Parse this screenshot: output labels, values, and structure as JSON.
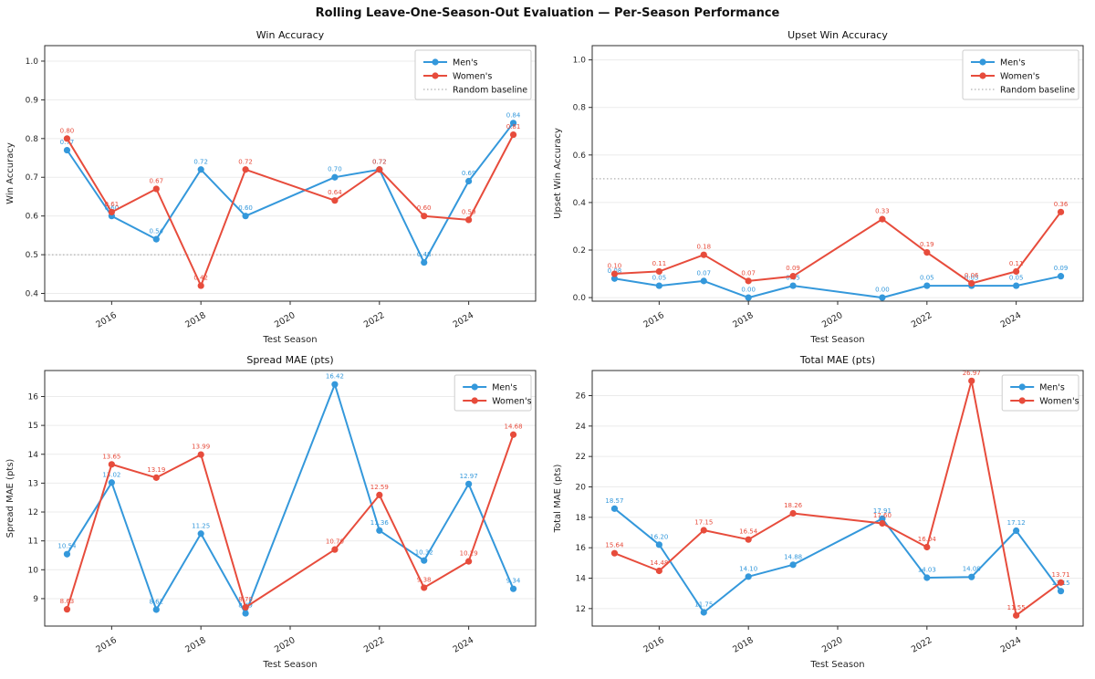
{
  "figure": {
    "title": "Rolling Leave-One-Season-Out Evaluation — Per-Season Performance"
  },
  "colors": {
    "mens": "#3498db",
    "womens": "#e74c3c",
    "baseline": "#b0b0b0",
    "grid": "#ebebeb",
    "spine": "#2e2e2e",
    "text": "#262626"
  },
  "chart_data": [
    {
      "id": "win-accuracy",
      "type": "line",
      "title": "Win Accuracy",
      "xlabel": "Test Season",
      "ylabel": "Win Accuracy",
      "x": [
        2015,
        2016,
        2017,
        2018,
        2019,
        2021,
        2022,
        2023,
        2024,
        2025
      ],
      "series": [
        {
          "name": "Men's",
          "color_key": "mens",
          "values": [
            0.77,
            0.6,
            0.54,
            0.72,
            0.6,
            0.7,
            0.72,
            0.48,
            0.69,
            0.84
          ]
        },
        {
          "name": "Women's",
          "color_key": "womens",
          "values": [
            0.8,
            0.61,
            0.67,
            0.42,
            0.72,
            0.64,
            0.72,
            0.6,
            0.59,
            0.81
          ]
        }
      ],
      "baseline": {
        "label": "Random baseline",
        "value": 0.5
      },
      "legend": [
        "Men's",
        "Women's",
        "Random baseline"
      ],
      "legend_position": "top-right",
      "grid": true,
      "xlim": [
        2014.5,
        2025.5
      ],
      "ylim": [
        0.38,
        1.04
      ],
      "xticks": [
        2016,
        2018,
        2020,
        2022,
        2024
      ],
      "yticks": [
        0.4,
        0.5,
        0.6,
        0.7,
        0.8,
        0.9,
        1.0
      ]
    },
    {
      "id": "upset-win-accuracy",
      "type": "line",
      "title": "Upset Win Accuracy",
      "xlabel": "Test Season",
      "ylabel": "Upset Win Accuracy",
      "x": [
        2015,
        2016,
        2017,
        2018,
        2019,
        2021,
        2022,
        2023,
        2024,
        2025
      ],
      "series": [
        {
          "name": "Men's",
          "color_key": "mens",
          "values": [
            0.08,
            0.05,
            0.07,
            0.0,
            0.05,
            0.0,
            0.05,
            0.05,
            0.05,
            0.09
          ]
        },
        {
          "name": "Women's",
          "color_key": "womens",
          "values": [
            0.1,
            0.11,
            0.18,
            0.07,
            0.09,
            0.33,
            0.19,
            0.06,
            0.11,
            0.36
          ]
        }
      ],
      "baseline": {
        "label": "Random baseline",
        "value": 0.5
      },
      "legend": [
        "Men's",
        "Women's",
        "Random baseline"
      ],
      "legend_position": "top-right",
      "grid": true,
      "xlim": [
        2014.5,
        2025.5
      ],
      "ylim": [
        -0.015,
        1.06
      ],
      "xticks": [
        2016,
        2018,
        2020,
        2022,
        2024
      ],
      "yticks": [
        0.0,
        0.2,
        0.4,
        0.6,
        0.8,
        1.0
      ]
    },
    {
      "id": "spread-mae",
      "type": "line",
      "title": "Spread MAE (pts)",
      "xlabel": "Test Season",
      "ylabel": "Spread MAE (pts)",
      "x": [
        2015,
        2016,
        2017,
        2018,
        2019,
        2021,
        2022,
        2023,
        2024,
        2025
      ],
      "series": [
        {
          "name": "Men's",
          "color_key": "mens",
          "values": [
            10.54,
            13.02,
            8.62,
            11.25,
            8.49,
            16.42,
            11.36,
            10.32,
            12.97,
            9.34
          ]
        },
        {
          "name": "Women's",
          "color_key": "womens",
          "values": [
            8.63,
            13.65,
            13.19,
            13.99,
            8.7,
            10.7,
            12.59,
            9.38,
            10.29,
            14.68
          ]
        }
      ],
      "baseline": null,
      "legend": [
        "Men's",
        "Women's"
      ],
      "legend_position": "top-right",
      "grid": true,
      "xlim": [
        2014.5,
        2025.5
      ],
      "ylim": [
        8.05,
        16.9
      ],
      "xticks": [
        2016,
        2018,
        2020,
        2022,
        2024
      ],
      "yticks": [
        9,
        10,
        11,
        12,
        13,
        14,
        15,
        16
      ]
    },
    {
      "id": "total-mae",
      "type": "line",
      "title": "Total MAE (pts)",
      "xlabel": "Test Season",
      "ylabel": "Total MAE (pts)",
      "x": [
        2015,
        2016,
        2017,
        2018,
        2019,
        2021,
        2022,
        2023,
        2024,
        2025
      ],
      "series": [
        {
          "name": "Men's",
          "color_key": "mens",
          "values": [
            18.57,
            16.2,
            11.75,
            14.1,
            14.88,
            17.91,
            14.03,
            14.08,
            17.12,
            13.15
          ]
        },
        {
          "name": "Women's",
          "color_key": "womens",
          "values": [
            15.64,
            14.48,
            17.15,
            16.54,
            18.26,
            17.6,
            16.04,
            26.97,
            11.55,
            13.71
          ]
        }
      ],
      "baseline": null,
      "legend": [
        "Men's",
        "Women's"
      ],
      "legend_position": "top-right",
      "grid": true,
      "xlim": [
        2014.5,
        2025.5
      ],
      "ylim": [
        10.85,
        27.65
      ],
      "xticks": [
        2016,
        2018,
        2020,
        2022,
        2024
      ],
      "yticks": [
        12,
        14,
        16,
        18,
        20,
        22,
        24,
        26
      ]
    }
  ]
}
